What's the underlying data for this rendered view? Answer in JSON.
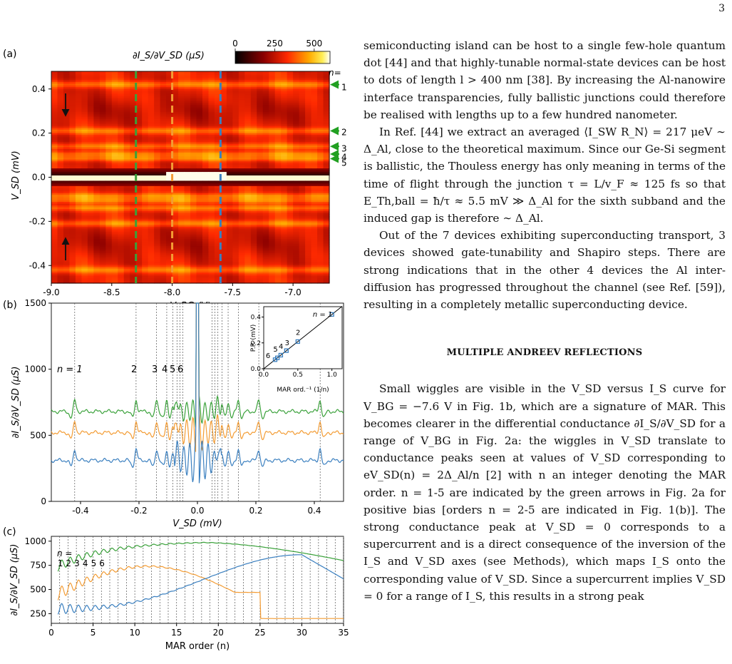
{
  "page_number": "3",
  "figure": {
    "panel_a": {
      "label": "(a)",
      "colorbar_label": "∂I_S/∂V_SD (μS)",
      "colorbar_ticks": [
        "0",
        "250",
        "500"
      ],
      "ylabel": "V_SD (mV)",
      "xlabel": "V_BG (V)",
      "yticks": [
        "0.4",
        "0.2",
        "0.0",
        "-0.2",
        "-0.4"
      ],
      "xticks": [
        "-9.0",
        "-8.5",
        "-8.0",
        "-7.5",
        "-7.0"
      ],
      "n_label": "n=",
      "arrow_labels": [
        "1",
        "2",
        "3",
        "4",
        "5"
      ],
      "dashed_line_colors": [
        "#3aa13a",
        "#f39c34",
        "#3a7fbf"
      ]
    },
    "panel_b": {
      "label": "(b)",
      "ylabel": "∂I_S/∂V_SD (μS)",
      "xlabel": "V_SD (mV)",
      "yticks": [
        "0",
        "500",
        "1000",
        "1500"
      ],
      "xticks": [
        "-0.4",
        "-0.2",
        "0.0",
        "0.2",
        "0.4"
      ],
      "order_labels": [
        "n = 1",
        "2",
        "3",
        "4",
        "5",
        "6"
      ],
      "inset": {
        "ylabel": "P.P. (mV)",
        "xlabel": "MAR ord.⁻¹ (1/n)",
        "xticks": [
          "0.0",
          "0.5",
          "1.0"
        ],
        "yticks": [
          "0.0",
          "0.2",
          "0.4"
        ],
        "labels": [
          "n = 1",
          "2",
          "3",
          "4",
          "5",
          "6"
        ]
      }
    },
    "panel_c": {
      "label": "(c)",
      "ylabel": "∂I_S/∂V_SD (μS)",
      "xlabel": "MAR order (n)",
      "yticks": [
        "250",
        "500",
        "750",
        "1000"
      ],
      "xticks": [
        "0",
        "5",
        "10",
        "15",
        "20",
        "25",
        "30",
        "35"
      ],
      "n_label": "n =",
      "order_labels": [
        "1",
        "2",
        "3",
        "4",
        "5",
        "6"
      ]
    }
  },
  "chart_data": [
    {
      "type": "heatmap",
      "panel": "a",
      "x_range": [
        -9.0,
        -6.7
      ],
      "y_range": [
        -0.48,
        0.48
      ],
      "colorbar_range": [
        0,
        600
      ],
      "dashed_lines_x": [
        -8.3,
        -8.0,
        -7.6
      ],
      "mar_peaks_vsd": [
        0.42,
        0.21,
        0.14,
        0.105,
        0.084
      ]
    },
    {
      "type": "line",
      "panel": "b",
      "x_range": [
        -0.5,
        0.5
      ],
      "y_range": [
        0,
        1500
      ],
      "mar_positions_vsd": [
        -0.42,
        -0.21,
        -0.14,
        -0.105,
        -0.084,
        -0.07,
        0.07,
        0.084,
        0.105,
        0.14,
        0.21,
        0.42
      ],
      "series": [
        {
          "color": "#3aa13a",
          "baseline": 680
        },
        {
          "color": "#f39c34",
          "baseline": 520
        },
        {
          "color": "#3a7fbf",
          "baseline": 310
        }
      ]
    },
    {
      "type": "scatter",
      "panel": "b-inset",
      "x": [
        1.0,
        0.5,
        0.333,
        0.25,
        0.2,
        0.167
      ],
      "y": [
        0.42,
        0.21,
        0.14,
        0.105,
        0.084,
        0.07
      ],
      "x_range": [
        0,
        1.15
      ],
      "y_range": [
        0,
        0.48
      ]
    },
    {
      "type": "line",
      "panel": "c",
      "x_range": [
        0,
        35
      ],
      "y_range": [
        150,
        1050
      ],
      "series": [
        {
          "color": "#3aa13a"
        },
        {
          "color": "#f39c34"
        },
        {
          "color": "#3a7fbf"
        }
      ]
    }
  ],
  "text": {
    "p1": "semiconducting island can be host to a single few-hole quantum dot [44] and that highly-tunable normal-state devices can be host to dots of length l > 400 nm [38]. By increasing the Al-nanowire interface transparencies, fully ballistic junctions could therefore be realised with lengths up to a few hundred nanometer.",
    "p2": "In Ref. [44] we extract an averaged ⟨I_SW R_N⟩ = 217 μeV ∼ Δ_Al, close to the theoretical maximum. Since our Ge-Si segment is ballistic, the Thouless energy has only meaning in terms of the time of flight through the junction τ = L/v_F ≈ 125 fs so that E_Th,ball = ħ/τ ≈ 5.5 mV ≫ Δ_Al for the sixth subband and the induced gap is therefore ∼ Δ_Al.",
    "p3": "Out of the 7 devices exhibiting superconducting transport, 3 devices showed gate-tunability and Shapiro steps. There are strong indications that in the other 4 devices the Al inter-diffusion has progressed throughout the channel (see Ref. [59]), resulting in a completely metallic superconducting device.",
    "heading": "MULTIPLE ANDREEV REFLECTIONS",
    "p4": "Small wiggles are visible in the V_SD versus I_S curve for V_BG = −7.6 V in Fig. 1b, which are a signature of MAR. This becomes clearer in the differential conductance ∂I_S/∂V_SD for a range of V_BG in Fig. 2a: the wiggles in V_SD translate to conductance peaks seen at values of V_SD corresponding to eV_SD(n) = 2Δ_Al/n [2] with n an integer denoting the MAR order. n = 1-5 are indicated by the green arrows in Fig. 2a for positive bias [orders n = 2-5 are indicated in Fig. 1(b)]. The strong conductance peak at V_SD = 0 corresponds to a supercurrent and is a direct consequence of the inversion of the I_S and V_SD axes (see Methods), which maps I_S onto the corresponding value of V_SD. Since a supercurrent implies V_SD = 0 for a range of I_S, this results in a strong peak"
  }
}
